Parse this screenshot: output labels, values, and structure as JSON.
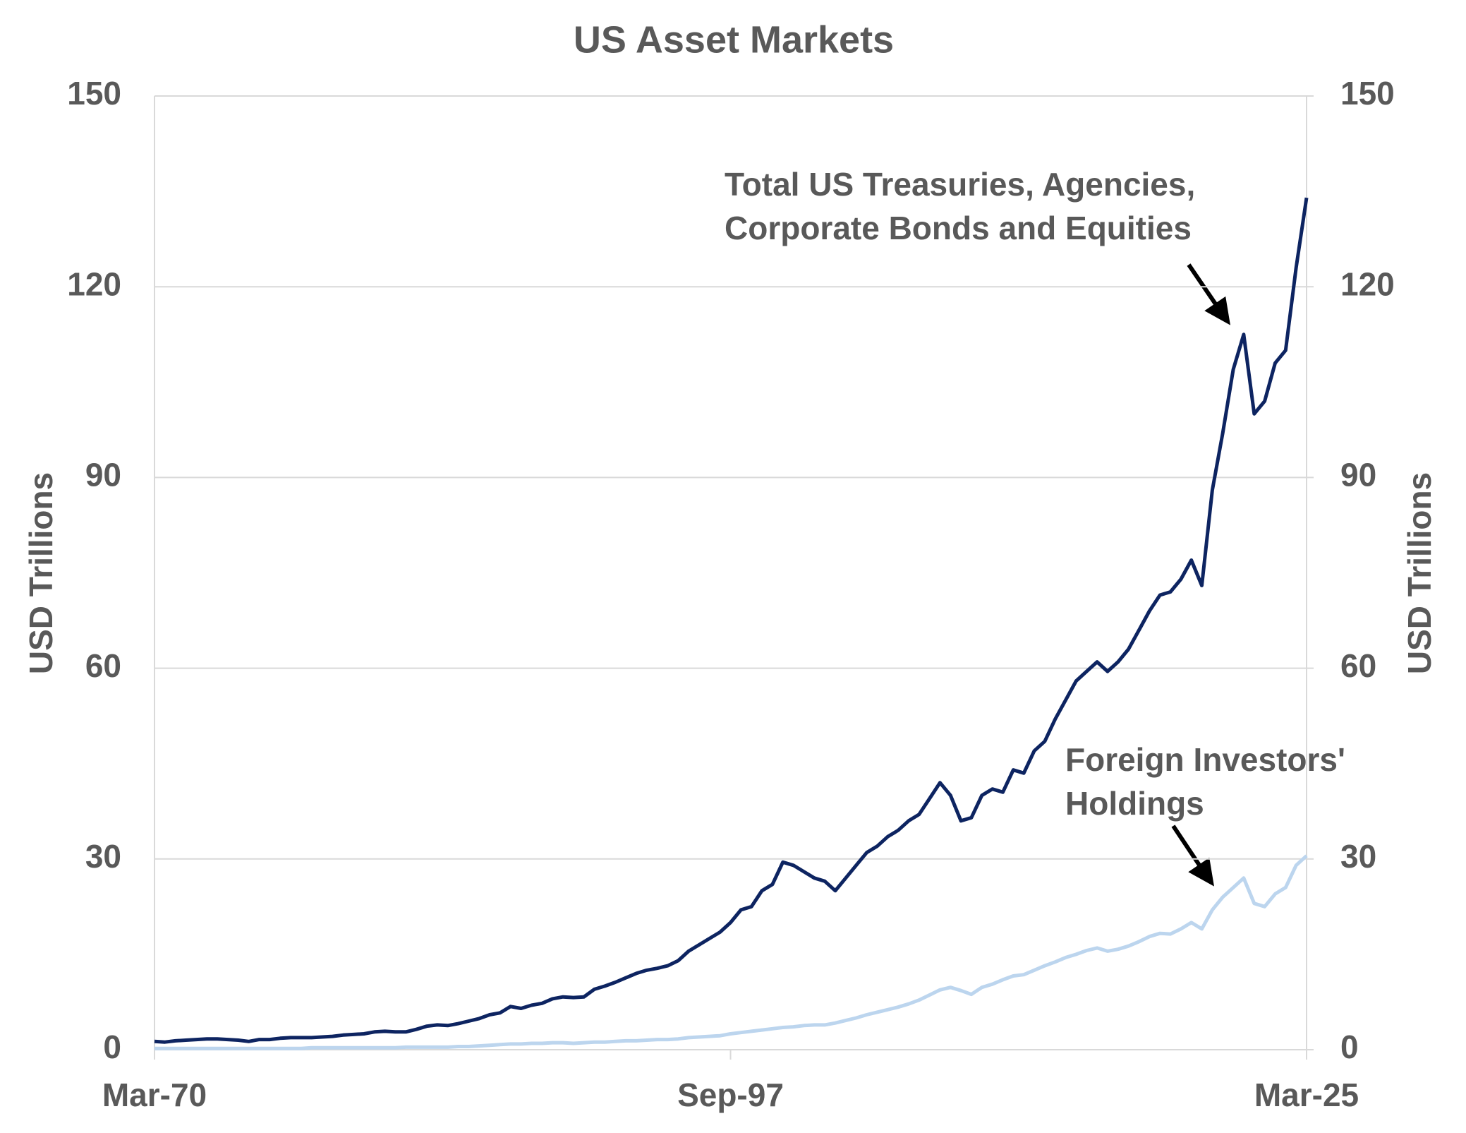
{
  "chart_data": {
    "type": "line",
    "title": "US Asset Markets",
    "y_label": "USD  Trillions",
    "y2_label": "USD  Trillions",
    "categories": [
      "Mar-70",
      null,
      null,
      null,
      null,
      null,
      null,
      null,
      null,
      null,
      null,
      null,
      null,
      null,
      null,
      null,
      null,
      null,
      null,
      null,
      null,
      null,
      null,
      null,
      null,
      null,
      null,
      null,
      null,
      null,
      null,
      null,
      null,
      null,
      null,
      null,
      null,
      null,
      null,
      null,
      null,
      null,
      null,
      null,
      null,
      null,
      null,
      null,
      null,
      null,
      null,
      null,
      null,
      null,
      null,
      "Sep-97",
      null,
      null,
      null,
      null,
      null,
      null,
      null,
      null,
      null,
      null,
      null,
      null,
      null,
      null,
      null,
      null,
      null,
      null,
      null,
      null,
      null,
      null,
      null,
      null,
      null,
      null,
      null,
      null,
      null,
      null,
      null,
      null,
      null,
      null,
      null,
      null,
      null,
      null,
      null,
      null,
      null,
      null,
      null,
      null,
      null,
      null,
      null,
      null,
      null,
      null,
      null,
      null,
      null,
      null,
      "Mar-25"
    ],
    "series": [
      {
        "name": "Total US Treasuries, Agencies, Corporate Bonds and Equities",
        "color": "#0d2461",
        "values": [
          1.3,
          1.2,
          1.4,
          1.5,
          1.6,
          1.7,
          1.7,
          1.6,
          1.5,
          1.3,
          1.6,
          1.6,
          1.8,
          1.9,
          1.9,
          1.9,
          2.0,
          2.1,
          2.3,
          2.4,
          2.5,
          2.8,
          2.9,
          2.8,
          2.8,
          3.2,
          3.7,
          3.9,
          3.8,
          4.1,
          4.5,
          4.9,
          5.5,
          5.8,
          6.8,
          6.5,
          7.0,
          7.3,
          8.0,
          8.3,
          8.2,
          8.3,
          9.5,
          10.0,
          10.6,
          11.3,
          12.0,
          12.5,
          12.8,
          13.2,
          14.0,
          15.5,
          16.5,
          17.5,
          18.5,
          20.0,
          22.0,
          22.5,
          25.0,
          26.0,
          29.5,
          29.0,
          28.0,
          27.0,
          26.5,
          25.0,
          27.0,
          29.0,
          31.0,
          32.0,
          33.5,
          34.5,
          36.0,
          37.0,
          39.5,
          42.0,
          40.0,
          36.0,
          36.5,
          40.0,
          41.0,
          40.5,
          44.0,
          43.5,
          47.0,
          48.5,
          52.0,
          55.0,
          58.0,
          59.5,
          61.0,
          59.5,
          61.0,
          63.0,
          66.0,
          69.0,
          71.5,
          72.0,
          74.0,
          77.0,
          73.0,
          88.0,
          97.0,
          107.0,
          112.5,
          100.0,
          102.0,
          108.0,
          110.0,
          123.0,
          134.0
        ]
      },
      {
        "name": "Foreign Investors' Holdings",
        "color": "#bcd5ee",
        "values": [
          0.2,
          0.2,
          0.2,
          0.2,
          0.2,
          0.2,
          0.2,
          0.2,
          0.2,
          0.2,
          0.2,
          0.2,
          0.2,
          0.2,
          0.2,
          0.3,
          0.3,
          0.3,
          0.3,
          0.3,
          0.3,
          0.3,
          0.3,
          0.3,
          0.4,
          0.4,
          0.4,
          0.4,
          0.4,
          0.5,
          0.5,
          0.6,
          0.7,
          0.8,
          0.9,
          0.9,
          1.0,
          1.0,
          1.1,
          1.1,
          1.0,
          1.1,
          1.2,
          1.2,
          1.3,
          1.4,
          1.4,
          1.5,
          1.6,
          1.6,
          1.7,
          1.9,
          2.0,
          2.1,
          2.2,
          2.5,
          2.7,
          2.9,
          3.1,
          3.3,
          3.5,
          3.6,
          3.8,
          3.9,
          3.9,
          4.2,
          4.6,
          5.0,
          5.5,
          5.9,
          6.3,
          6.7,
          7.2,
          7.8,
          8.6,
          9.4,
          9.8,
          9.3,
          8.7,
          9.8,
          10.3,
          11.0,
          11.6,
          11.8,
          12.5,
          13.2,
          13.8,
          14.5,
          15.0,
          15.6,
          16.0,
          15.5,
          15.8,
          16.3,
          17.0,
          17.8,
          18.3,
          18.2,
          19.0,
          20.0,
          19.0,
          22.0,
          24.0,
          25.5,
          27.0,
          23.0,
          22.5,
          24.5,
          25.5,
          29.0,
          30.5
        ]
      }
    ],
    "annotations": [
      {
        "lines": [
          "Total US Treasuries, Agencies,",
          "Corporate Bonds and Equities"
        ]
      },
      {
        "lines": [
          "Foreign Investors'",
          "Holdings"
        ]
      }
    ],
    "ylim": [
      0,
      150
    ],
    "yticks": [
      0,
      30,
      60,
      90,
      120,
      150
    ],
    "y2lim": [
      0,
      150
    ],
    "y2ticks": [
      0,
      30,
      60,
      90,
      120,
      150
    ],
    "grid": true
  }
}
